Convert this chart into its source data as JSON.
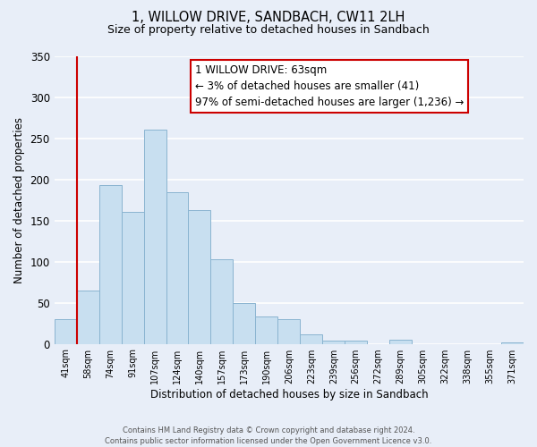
{
  "title": "1, WILLOW DRIVE, SANDBACH, CW11 2LH",
  "subtitle": "Size of property relative to detached houses in Sandbach",
  "xlabel": "Distribution of detached houses by size in Sandbach",
  "ylabel": "Number of detached properties",
  "bar_labels": [
    "41sqm",
    "58sqm",
    "74sqm",
    "91sqm",
    "107sqm",
    "124sqm",
    "140sqm",
    "157sqm",
    "173sqm",
    "190sqm",
    "206sqm",
    "223sqm",
    "239sqm",
    "256sqm",
    "272sqm",
    "289sqm",
    "305sqm",
    "322sqm",
    "338sqm",
    "355sqm",
    "371sqm"
  ],
  "bar_values": [
    30,
    65,
    193,
    160,
    260,
    184,
    163,
    103,
    50,
    33,
    30,
    11,
    4,
    4,
    0,
    5,
    0,
    0,
    0,
    0,
    2
  ],
  "bar_color": "#c8dff0",
  "bar_edge_color": "#8ab4d0",
  "vline_x": 0.5,
  "vline_color": "#cc0000",
  "annotation_title": "1 WILLOW DRIVE: 63sqm",
  "annotation_line1": "← 3% of detached houses are smaller (41)",
  "annotation_line2": "97% of semi-detached houses are larger (1,236) →",
  "annotation_box_facecolor": "#ffffff",
  "annotation_box_edgecolor": "#cc0000",
  "ylim": [
    0,
    350
  ],
  "yticks": [
    0,
    50,
    100,
    150,
    200,
    250,
    300,
    350
  ],
  "footer_line1": "Contains HM Land Registry data © Crown copyright and database right 2024.",
  "footer_line2": "Contains public sector information licensed under the Open Government Licence v3.0.",
  "bg_color": "#e8eef8"
}
